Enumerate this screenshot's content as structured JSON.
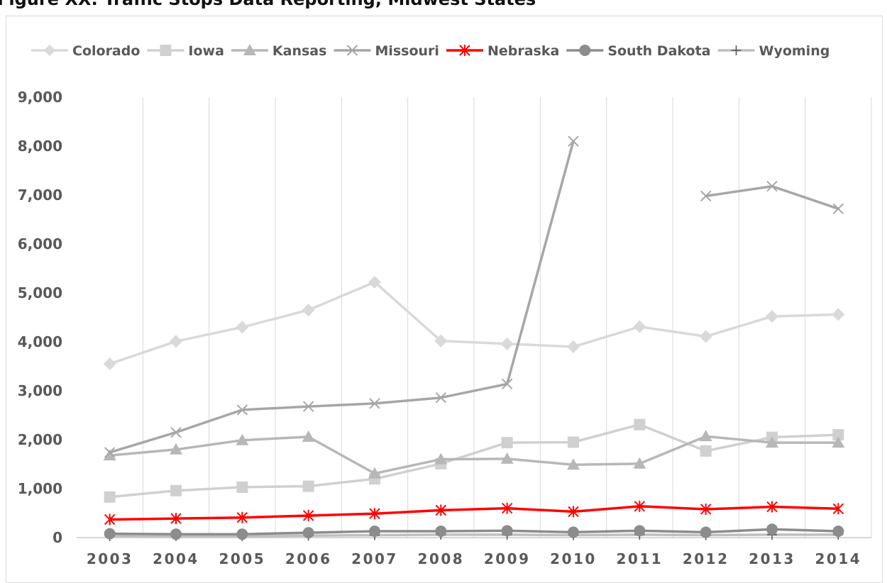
{
  "title": "Figure XX: Traffic Stops Data Reporting, Midwest States",
  "chart_data": {
    "type": "line",
    "title": "",
    "xlabel": "",
    "ylabel": "",
    "categories": [
      "2003",
      "2004",
      "2005",
      "2006",
      "2007",
      "2008",
      "2009",
      "2010",
      "2011",
      "2012",
      "2013",
      "2014"
    ],
    "ylim": [
      0,
      9000
    ],
    "yticks": [
      0,
      1000,
      2000,
      3000,
      4000,
      5000,
      6000,
      7000,
      8000,
      9000
    ],
    "ytick_labels": [
      "0",
      "1,000",
      "2,000",
      "3,000",
      "4,000",
      "5,000",
      "6,000",
      "7,000",
      "8,000",
      "9,000"
    ],
    "grid": "vertical",
    "legend": "top",
    "series": [
      {
        "name": "Colorado",
        "color": "#d9d9d9",
        "marker": "diamond",
        "values": [
          3550,
          4010,
          4300,
          4650,
          5220,
          4020,
          3960,
          3900,
          4310,
          4110,
          4520,
          4560
        ]
      },
      {
        "name": "Iowa",
        "color": "#d0d0d0",
        "marker": "square",
        "values": [
          830,
          960,
          1030,
          1050,
          1200,
          1510,
          1940,
          1950,
          2310,
          1770,
          2050,
          2100
        ]
      },
      {
        "name": "Kansas",
        "color": "#b7b7b7",
        "marker": "triangle",
        "values": [
          1680,
          1800,
          1990,
          2060,
          1310,
          1600,
          1610,
          1490,
          1510,
          2070,
          1940,
          1940
        ]
      },
      {
        "name": "Missouri",
        "color": "#a6a6a6",
        "marker": "x",
        "values": [
          1740,
          2150,
          2610,
          2680,
          2740,
          2860,
          3140,
          8100,
          null,
          6980,
          7180,
          6720
        ]
      },
      {
        "name": "Nebraska",
        "color": "#ff0000",
        "marker": "asterisk",
        "values": [
          370,
          390,
          410,
          450,
          490,
          560,
          600,
          530,
          640,
          580,
          630,
          590
        ]
      },
      {
        "name": "South Dakota",
        "color": "#8c8c8c",
        "marker": "circle",
        "values": [
          80,
          70,
          70,
          100,
          130,
          130,
          140,
          110,
          140,
          110,
          170,
          130
        ]
      },
      {
        "name": "Wyoming",
        "color": "#bfbfbf",
        "marker": "plus",
        "values": [
          30,
          30,
          30,
          40,
          50,
          60,
          60,
          50,
          60,
          50,
          60,
          60
        ]
      }
    ]
  }
}
